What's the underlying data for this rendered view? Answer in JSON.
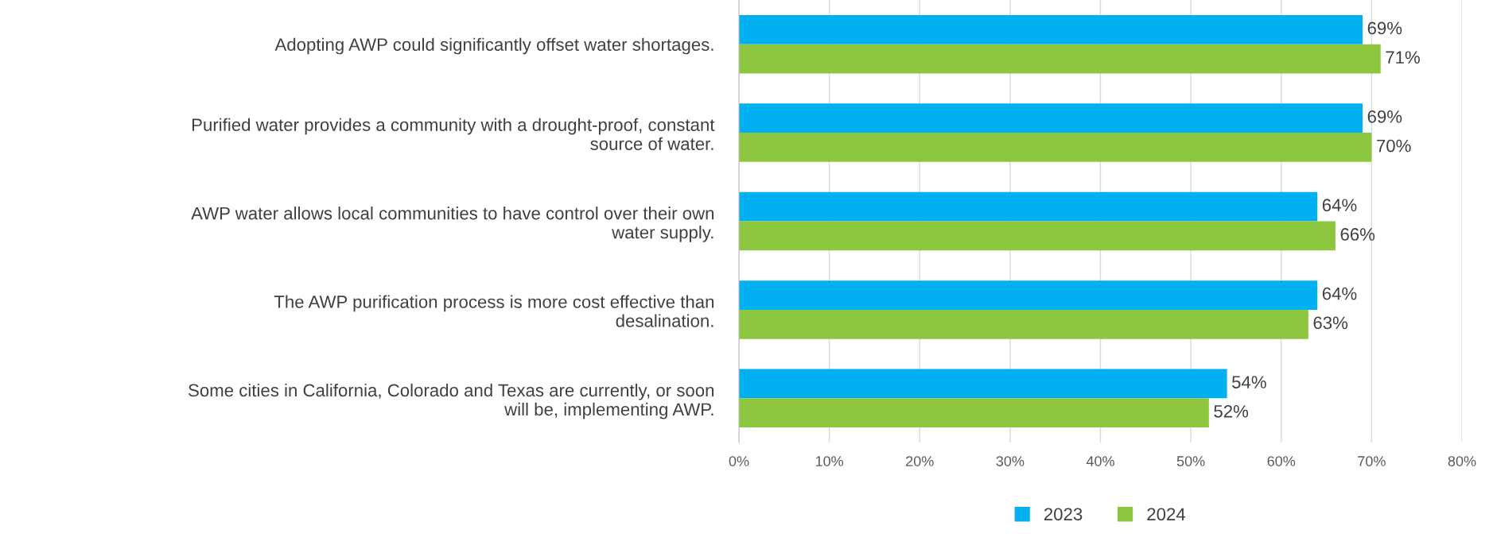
{
  "chart_data": {
    "type": "bar",
    "orientation": "horizontal",
    "categories": [
      "Adopting AWP could significantly offset water shortages.",
      "Purified water provides a community with a drought-proof, constant\nsource of water.",
      "AWP water allows local communities to have control over their own\nwater supply.",
      "The AWP purification process is more cost effective than\ndesalination.",
      "Some cities in California, Colorado and Texas are currently, or soon\nwill be, implementing AWP."
    ],
    "series": [
      {
        "name": "2023",
        "color": "#00b0f0",
        "values": [
          69,
          69,
          64,
          64,
          54
        ]
      },
      {
        "name": "2024",
        "color": "#8dc63f",
        "values": [
          71,
          70,
          66,
          63,
          52
        ]
      }
    ],
    "xlim": [
      0,
      80
    ],
    "xticks": [
      {
        "value": 0,
        "label": "0%"
      },
      {
        "value": 10,
        "label": "10%"
      },
      {
        "value": 20,
        "label": "20%"
      },
      {
        "value": 30,
        "label": "30%"
      },
      {
        "value": 40,
        "label": "40%"
      },
      {
        "value": 50,
        "label": "50%"
      },
      {
        "value": 60,
        "label": "60%"
      },
      {
        "value": 70,
        "label": "70%"
      },
      {
        "value": 80,
        "label": "80%"
      }
    ],
    "value_labels": [
      [
        "69%",
        "69%",
        "64%",
        "64%",
        "54%"
      ],
      [
        "71%",
        "70%",
        "66%",
        "63%",
        "52%"
      ]
    ],
    "grid": "x",
    "legend": "bottom"
  }
}
